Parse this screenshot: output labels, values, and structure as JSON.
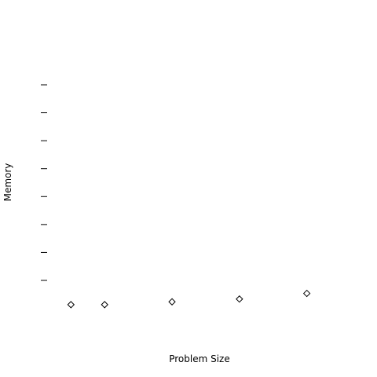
{
  "chart_data": {
    "type": "scatter",
    "xlabel": "Problem Size",
    "ylabel": "Memory",
    "marker": "diamond",
    "marker_color": "#000000",
    "background": "#ffffff",
    "grid": false,
    "y_tick_count": 8,
    "points": [
      {
        "x": 1,
        "y": 0.1
      },
      {
        "x": 2,
        "y": 0.1
      },
      {
        "x": 4,
        "y": 0.2
      },
      {
        "x": 6,
        "y": 0.3
      },
      {
        "x": 8,
        "y": 0.5
      }
    ],
    "xlim": [
      0.2,
      9.5
    ],
    "ylim": [
      -0.1,
      8.3
    ]
  }
}
